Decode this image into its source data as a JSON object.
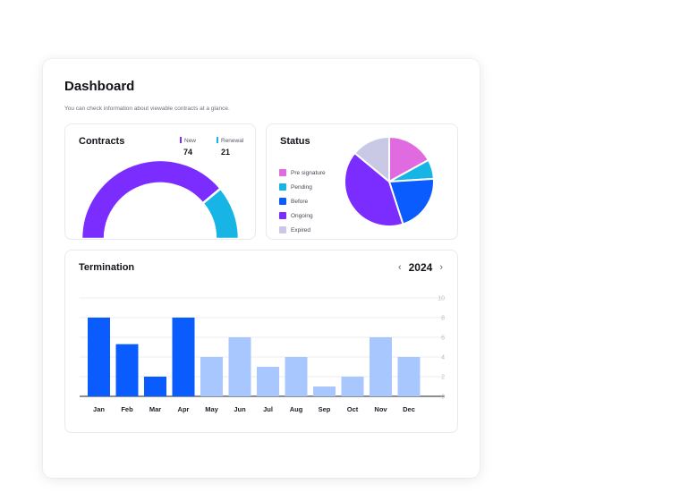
{
  "header": {
    "title": "Dashboard",
    "subtitle": "You can check information about viewable contracts at a glance."
  },
  "contracts": {
    "title": "Contracts",
    "new_label": "New",
    "new_value": "74",
    "renewal_label": "Renewal",
    "renewal_value": "21",
    "colors": {
      "new": "#7b2cff",
      "renewal": "#17b5e6"
    }
  },
  "status": {
    "title": "Status",
    "items": [
      {
        "label": "Pre signature",
        "color": "#e06ae0"
      },
      {
        "label": "Pending",
        "color": "#17b5e6"
      },
      {
        "label": "Before",
        "color": "#0a5cff"
      },
      {
        "label": "Ongoing",
        "color": "#7b2cff"
      },
      {
        "label": "Expired",
        "color": "#c9c9e6"
      }
    ]
  },
  "termination": {
    "title": "Termination",
    "year": "2024",
    "prev_icon": "chevron-left-icon",
    "next_icon": "chevron-right-icon"
  },
  "chart_data": [
    {
      "type": "pie",
      "subtype": "half-donut",
      "series": [
        {
          "name": "New",
          "value": 74,
          "color": "#7b2cff"
        },
        {
          "name": "Renewal",
          "value": 21,
          "color": "#17b5e6"
        }
      ]
    },
    {
      "type": "pie",
      "categories": [
        "Pre signature",
        "Pending",
        "Before",
        "Ongoing",
        "Expired"
      ],
      "values": [
        17,
        7,
        21,
        41,
        14
      ],
      "colors": [
        "#e06ae0",
        "#17b5e6",
        "#0a5cff",
        "#7b2cff",
        "#c9c9e6"
      ]
    },
    {
      "type": "bar",
      "categories": [
        "Jan",
        "Feb",
        "Mar",
        "Apr",
        "May",
        "Jun",
        "Jul",
        "Aug",
        "Sep",
        "Oct",
        "Nov",
        "Dec"
      ],
      "values": [
        8,
        5.3,
        2,
        8,
        4,
        6,
        3,
        4,
        1,
        2,
        6,
        4
      ],
      "highlighted": [
        "Jan",
        "Feb",
        "Mar",
        "Apr"
      ],
      "colors": {
        "highlight": "#0a5cff",
        "default": "#a9c7ff"
      },
      "yticks": [
        10,
        8,
        6,
        4,
        2,
        0
      ],
      "ylim": [
        0,
        10
      ],
      "grid": true
    }
  ]
}
